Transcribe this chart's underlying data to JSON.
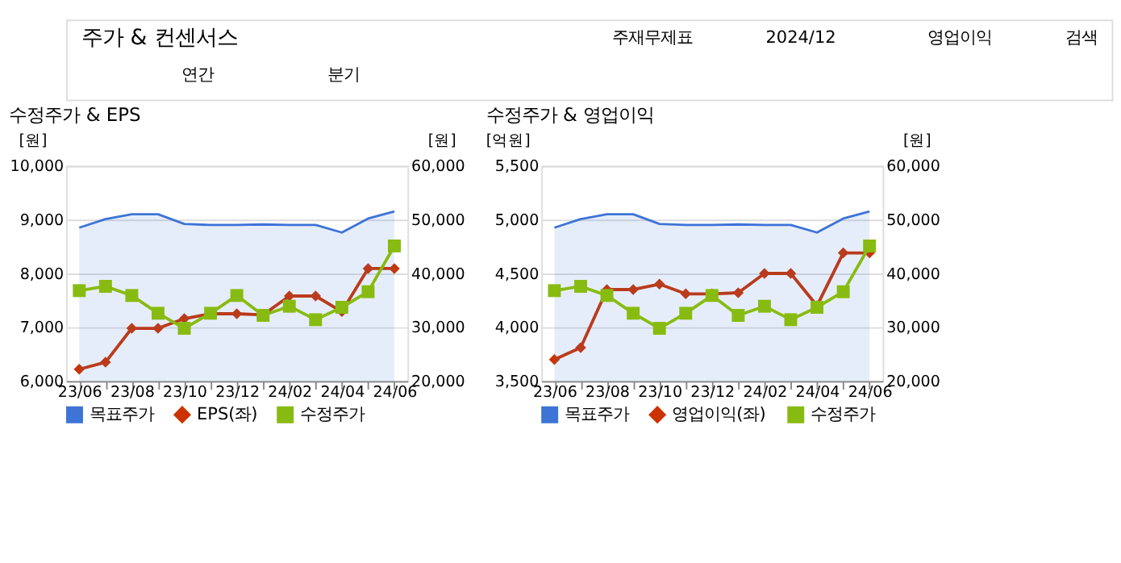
{
  "chart_data": [
    {
      "type": "line",
      "title": "수정주가 & EPS",
      "annotations": [
        "주가 & 컨센서스",
        "주재무제표",
        "2024/12",
        "영업이익",
        "검색",
        "연간",
        "분기"
      ],
      "categories": [
        "23/06",
        null,
        "23/08",
        null,
        "23/10",
        null,
        "23/12",
        null,
        "24/02",
        null,
        "24/04",
        null,
        "24/06"
      ],
      "ylabel": "[원]",
      "y2label": "[원]",
      "ylim": [
        6000,
        10000
      ],
      "yticks": [
        {
          "value": 6000,
          "label": "6,000"
        },
        {
          "value": 7000,
          "label": "7,000"
        },
        {
          "value": 8000,
          "label": "8,000"
        },
        {
          "value": 9000,
          "label": "9,000"
        },
        {
          "value": 10000,
          "label": "10,000"
        }
      ],
      "y2lim": [
        20000,
        60000
      ],
      "y2ticks": [
        {
          "value": 20000,
          "label": "20,000"
        },
        {
          "value": 30000,
          "label": "30,000"
        },
        {
          "value": 40000,
          "label": "40,000"
        },
        {
          "value": 50000,
          "label": "50,000"
        },
        {
          "value": 60000,
          "label": "60,000"
        }
      ],
      "grid": "y",
      "legend": "bottom",
      "series": [
        {
          "name": "목표주가",
          "type": "area",
          "axis": "y2",
          "marker": "none",
          "color": "#3d74d6",
          "values": [
            48500,
            50100,
            51000,
            51000,
            49200,
            49000,
            49000,
            49100,
            49000,
            49000,
            47600,
            50200,
            51500
          ]
        },
        {
          "name": "EPS(좌)",
          "type": "line",
          "axis": "y",
          "marker": "diamond",
          "color": "#cc3300",
          "values": [
            6220,
            6350,
            6980,
            6980,
            7160,
            7250,
            7250,
            7230,
            7580,
            7580,
            7290,
            8090,
            8090
          ]
        },
        {
          "name": "수정주가",
          "axis": "y2",
          "marker": "square",
          "color": "#88bb11",
          "values": [
            36800,
            37600,
            35900,
            32600,
            29800,
            32600,
            35900,
            32200,
            33900,
            31400,
            33700,
            36600,
            45100
          ]
        }
      ]
    },
    {
      "type": "line",
      "title": "수정주가 & 영업이익",
      "categories": [
        "23/06",
        null,
        "23/08",
        null,
        "23/10",
        null,
        "23/12",
        null,
        "24/02",
        null,
        "24/04",
        null,
        "24/06"
      ],
      "ylabel": "[억원]",
      "y2label": "[원]",
      "ylim": [
        3500,
        5500
      ],
      "yticks": [
        {
          "value": 3500,
          "label": "3,500"
        },
        {
          "value": 4000,
          "label": "4,000"
        },
        {
          "value": 4500,
          "label": "4,500"
        },
        {
          "value": 5000,
          "label": "5,000"
        },
        {
          "value": 5500,
          "label": "5,500"
        }
      ],
      "y2lim": [
        20000,
        60000
      ],
      "y2ticks": [
        {
          "value": 20000,
          "label": "20,000"
        },
        {
          "value": 30000,
          "label": "30,000"
        },
        {
          "value": 40000,
          "label": "40,000"
        },
        {
          "value": 50000,
          "label": "50,000"
        },
        {
          "value": 60000,
          "label": "60,000"
        }
      ],
      "grid": "y",
      "legend": "bottom",
      "series": [
        {
          "name": "목표주가",
          "type": "area",
          "axis": "y2",
          "marker": "none",
          "color": "#3d74d6",
          "values": [
            48500,
            50100,
            51000,
            51000,
            49200,
            49000,
            49000,
            49100,
            49000,
            49000,
            47600,
            50200,
            51500
          ]
        },
        {
          "name": "영업이익(좌)",
          "type": "line",
          "axis": "y",
          "marker": "diamond",
          "color": "#cc3300",
          "values": [
            3700,
            3810,
            4350,
            4350,
            4400,
            4310,
            4310,
            4320,
            4500,
            4500,
            4200,
            4690,
            4690
          ]
        },
        {
          "name": "수정주가",
          "axis": "y2",
          "marker": "square",
          "color": "#88bb11",
          "values": [
            36800,
            37600,
            35900,
            32600,
            29800,
            32600,
            35900,
            32200,
            33900,
            31400,
            33700,
            36600,
            45100
          ]
        }
      ]
    }
  ]
}
